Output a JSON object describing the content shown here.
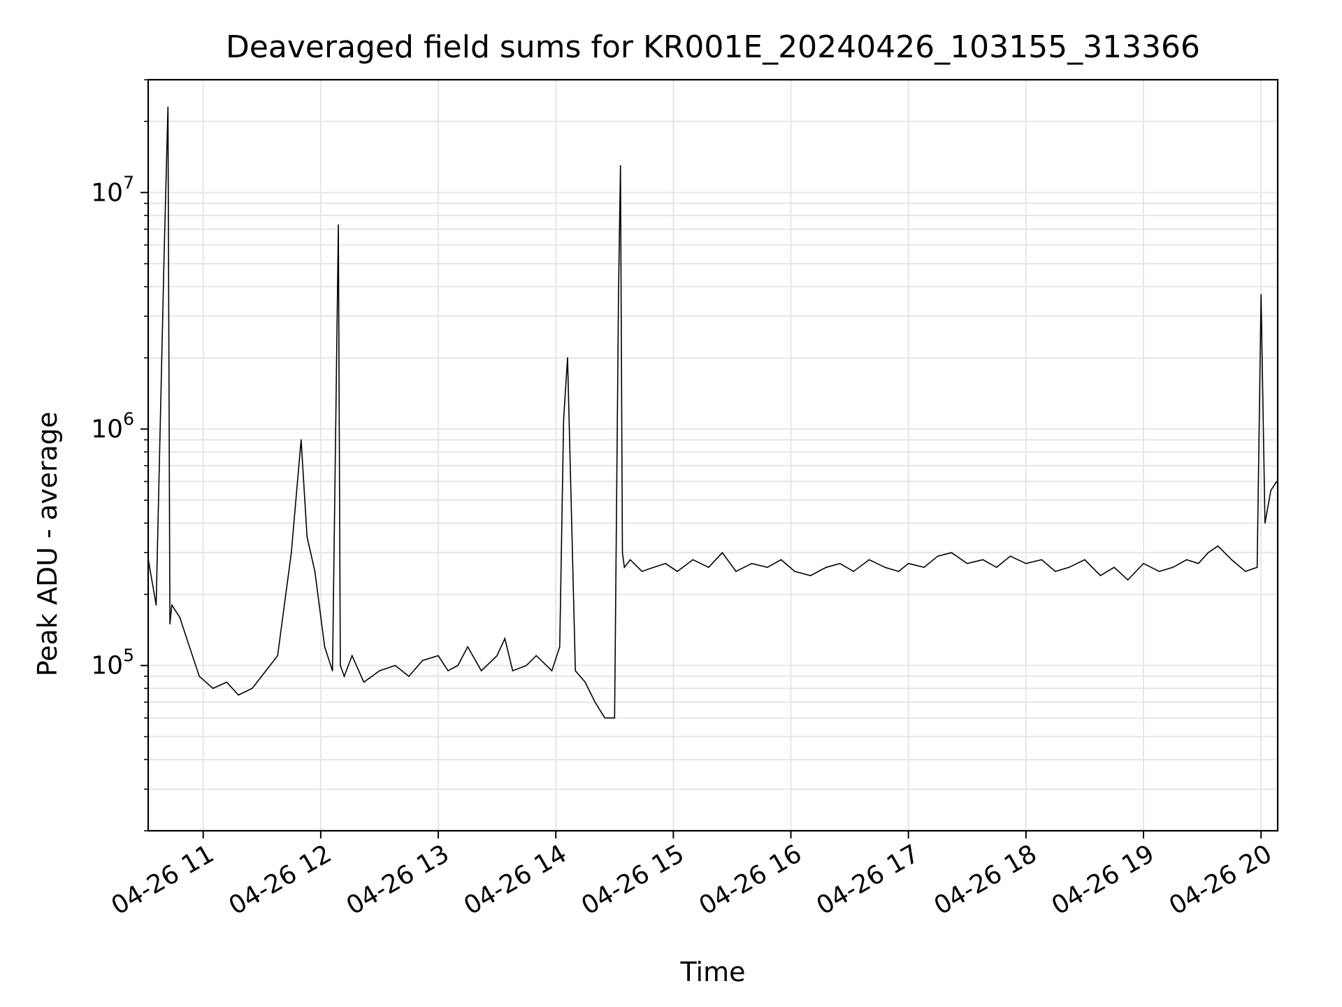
{
  "chart_data": {
    "type": "line",
    "title": "Deaveraged field sums for KR001E_20240426_103155_313366",
    "xlabel": "Time",
    "ylabel": "Peak ADU - average",
    "yscale": "log",
    "grid": true,
    "ylim": [
      20000,
      30000000
    ],
    "xlim": [
      "2024-04-26 10:31:55",
      "2024-04-26 20:08:30"
    ],
    "x_ticks": [
      {
        "time": "2024-04-26 11:00",
        "label": "04-26 11"
      },
      {
        "time": "2024-04-26 12:00",
        "label": "04-26 12"
      },
      {
        "time": "2024-04-26 13:00",
        "label": "04-26 13"
      },
      {
        "time": "2024-04-26 14:00",
        "label": "04-26 14"
      },
      {
        "time": "2024-04-26 15:00",
        "label": "04-26 15"
      },
      {
        "time": "2024-04-26 16:00",
        "label": "04-26 16"
      },
      {
        "time": "2024-04-26 17:00",
        "label": "04-26 17"
      },
      {
        "time": "2024-04-26 18:00",
        "label": "04-26 18"
      },
      {
        "time": "2024-04-26 19:00",
        "label": "04-26 19"
      },
      {
        "time": "2024-04-26 20:00",
        "label": "04-26 20"
      }
    ],
    "y_ticks": [
      {
        "value": 100000,
        "base": "10",
        "exp": "5"
      },
      {
        "value": 1000000,
        "base": "10",
        "exp": "6"
      },
      {
        "value": 10000000,
        "base": "10",
        "exp": "7"
      }
    ],
    "line_color": "#000000",
    "grid_color": "#e6e6e6",
    "series": [
      {
        "x": [
          "2024-04-26 10:32",
          "2024-04-26 10:36",
          "2024-04-26 10:40",
          "2024-04-26 10:42",
          "2024-04-26 10:43",
          "2024-04-26 10:44",
          "2024-04-26 10:48",
          "2024-04-26 10:53",
          "2024-04-26 10:58",
          "2024-04-26 11:05",
          "2024-04-26 11:12",
          "2024-04-26 11:18",
          "2024-04-26 11:25",
          "2024-04-26 11:32",
          "2024-04-26 11:38",
          "2024-04-26 11:45",
          "2024-04-26 11:50",
          "2024-04-26 11:53",
          "2024-04-26 11:57",
          "2024-04-26 12:02",
          "2024-04-26 12:06",
          "2024-04-26 12:09",
          "2024-04-26 12:10",
          "2024-04-26 12:12",
          "2024-04-26 12:16",
          "2024-04-26 12:22",
          "2024-04-26 12:30",
          "2024-04-26 12:38",
          "2024-04-26 12:45",
          "2024-04-26 12:52",
          "2024-04-26 13:00",
          "2024-04-26 13:05",
          "2024-04-26 13:10",
          "2024-04-26 13:15",
          "2024-04-26 13:22",
          "2024-04-26 13:30",
          "2024-04-26 13:34",
          "2024-04-26 13:38",
          "2024-04-26 13:45",
          "2024-04-26 13:50",
          "2024-04-26 13:58",
          "2024-04-26 14:02",
          "2024-04-26 14:04",
          "2024-04-26 14:06",
          "2024-04-26 14:10",
          "2024-04-26 14:15",
          "2024-04-26 14:20",
          "2024-04-26 14:25",
          "2024-04-26 14:30",
          "2024-04-26 14:32",
          "2024-04-26 14:33",
          "2024-04-26 14:34",
          "2024-04-26 14:35",
          "2024-04-26 14:38",
          "2024-04-26 14:44",
          "2024-04-26 14:50",
          "2024-04-26 14:56",
          "2024-04-26 15:02",
          "2024-04-26 15:10",
          "2024-04-26 15:18",
          "2024-04-26 15:25",
          "2024-04-26 15:32",
          "2024-04-26 15:40",
          "2024-04-26 15:48",
          "2024-04-26 15:55",
          "2024-04-26 16:02",
          "2024-04-26 16:10",
          "2024-04-26 16:18",
          "2024-04-26 16:25",
          "2024-04-26 16:32",
          "2024-04-26 16:40",
          "2024-04-26 16:48",
          "2024-04-26 16:55",
          "2024-04-26 17:00",
          "2024-04-26 17:08",
          "2024-04-26 17:15",
          "2024-04-26 17:22",
          "2024-04-26 17:30",
          "2024-04-26 17:38",
          "2024-04-26 17:45",
          "2024-04-26 17:52",
          "2024-04-26 18:00",
          "2024-04-26 18:08",
          "2024-04-26 18:15",
          "2024-04-26 18:22",
          "2024-04-26 18:30",
          "2024-04-26 18:38",
          "2024-04-26 18:45",
          "2024-04-26 18:52",
          "2024-04-26 19:00",
          "2024-04-26 19:08",
          "2024-04-26 19:15",
          "2024-04-26 19:22",
          "2024-04-26 19:28",
          "2024-04-26 19:33",
          "2024-04-26 19:38",
          "2024-04-26 19:45",
          "2024-04-26 19:52",
          "2024-04-26 19:58",
          "2024-04-26 20:00",
          "2024-04-26 20:02",
          "2024-04-26 20:05",
          "2024-04-26 20:08"
        ],
        "y": [
          280000,
          180000,
          5300000,
          23000000,
          150000,
          180000,
          160000,
          120000,
          90000,
          80000,
          85000,
          75000,
          80000,
          95000,
          110000,
          300000,
          900000,
          350000,
          250000,
          120000,
          95000,
          7300000,
          100000,
          90000,
          110000,
          85000,
          95000,
          100000,
          90000,
          105000,
          110000,
          95000,
          100000,
          120000,
          95000,
          110000,
          130000,
          95000,
          100000,
          110000,
          95000,
          120000,
          1100000,
          2000000,
          95000,
          85000,
          70000,
          60000,
          60000,
          3700000,
          13000000,
          300000,
          260000,
          280000,
          250000,
          260000,
          270000,
          250000,
          280000,
          260000,
          300000,
          250000,
          270000,
          260000,
          280000,
          250000,
          240000,
          260000,
          270000,
          250000,
          280000,
          260000,
          250000,
          270000,
          260000,
          290000,
          300000,
          270000,
          280000,
          260000,
          290000,
          270000,
          280000,
          250000,
          260000,
          280000,
          240000,
          260000,
          230000,
          270000,
          250000,
          260000,
          280000,
          270000,
          300000,
          320000,
          280000,
          250000,
          260000,
          3700000,
          400000,
          550000,
          600000
        ]
      }
    ]
  }
}
